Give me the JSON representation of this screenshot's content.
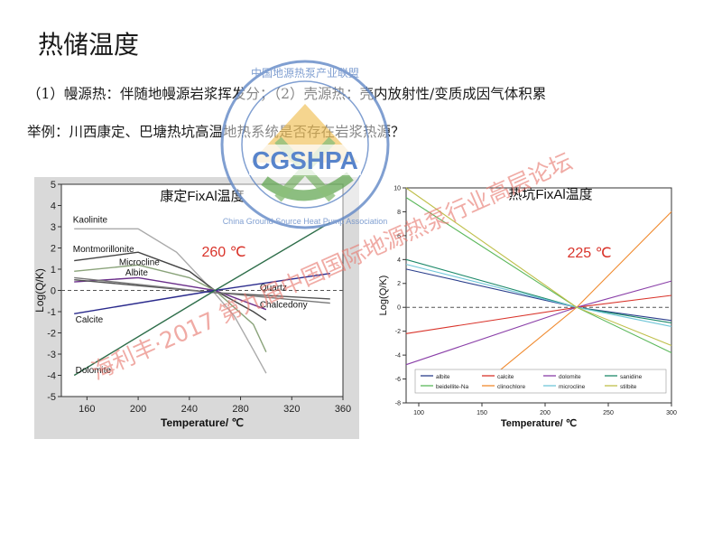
{
  "slide": {
    "title": "热储温度",
    "line1": "（1）幔源热：伴随地幔源岩浆挥发分；（2）壳源热：壳内放射性/变质成因气体积累",
    "line2": "举例：川西康定、巴塘热坑高温地热系统是否存在岩浆热源？"
  },
  "watermark": {
    "logo_text": "CGSHPA",
    "ring_top": "中国地源热泵产业联盟",
    "ring_bottom": "China Ground Source Heat Pump Association",
    "banner": "海利丰·2017 第九届中国国际地源热泵行业高层论坛"
  },
  "colors": {
    "annotation": "#d9342b",
    "ref_line": "#555555"
  },
  "chart_data": [
    {
      "type": "line",
      "title": "康定FixAl温度",
      "annotation": "260 ℃",
      "xlabel": "Temperature/ ℃",
      "ylabel": "Log(Q/K)",
      "xlim": [
        140,
        360
      ],
      "ylim": [
        -5,
        5
      ],
      "xticks": [
        160,
        200,
        240,
        280,
        320,
        360
      ],
      "yticks": [
        -5,
        -4,
        -3,
        -2,
        -1,
        0,
        1,
        2,
        3,
        4,
        5
      ],
      "grid": false,
      "series": [
        {
          "name": "Kaolinite",
          "color": "#aaaaaa",
          "x": [
            150,
            200,
            230,
            255,
            275,
            290,
            300
          ],
          "y": [
            2.9,
            2.9,
            1.8,
            0.2,
            -1.2,
            -2.8,
            -3.9
          ]
        },
        {
          "name": "Montmorillonite",
          "color": "#444444",
          "x": [
            150,
            200,
            240,
            260,
            290,
            300
          ],
          "y": [
            1.4,
            1.8,
            0.9,
            0.0,
            -1.0,
            -1.4
          ]
        },
        {
          "name": "Microcline",
          "color": "#8aa37a",
          "x": [
            150,
            200,
            240,
            260,
            290,
            300
          ],
          "y": [
            0.9,
            1.2,
            0.6,
            0.0,
            -1.6,
            -2.9
          ]
        },
        {
          "name": "Albite",
          "color": "#6a2e8a",
          "x": [
            150,
            200,
            260,
            300
          ],
          "y": [
            0.4,
            0.6,
            0.0,
            -0.9
          ]
        },
        {
          "name": "Quartz",
          "color": "#555555",
          "x": [
            150,
            260,
            350
          ],
          "y": [
            0.5,
            -0.1,
            -0.4
          ]
        },
        {
          "name": "Chalcedony",
          "color": "#777777",
          "x": [
            150,
            260,
            350
          ],
          "y": [
            0.6,
            -0.1,
            -0.6
          ]
        },
        {
          "name": "Calcite",
          "color": "#2a2a8c",
          "x": [
            150,
            260,
            350
          ],
          "y": [
            -1.1,
            0.0,
            0.8
          ]
        },
        {
          "name": "Dolomite",
          "color": "#2e6e4a",
          "x": [
            150,
            260,
            350
          ],
          "y": [
            -4.0,
            0.0,
            3.2
          ]
        }
      ],
      "reference_line": {
        "y": 0,
        "style": "dashed"
      }
    },
    {
      "type": "line",
      "title": "热坑FixAl温度",
      "annotation": "225 ℃",
      "xlabel": "Temperature/ ℃",
      "ylabel": "Log(Q/K)",
      "xlim": [
        90,
        300
      ],
      "ylim": [
        -8,
        10
      ],
      "xticks": [
        100,
        150,
        200,
        250,
        300
      ],
      "yticks": [
        -8,
        -6,
        -4,
        -2,
        0,
        2,
        4,
        6,
        8,
        10
      ],
      "grid": false,
      "legend_position": "bottom",
      "series": [
        {
          "name": "albite",
          "color": "#2b3f8c",
          "x": [
            90,
            225,
            300
          ],
          "y": [
            3.2,
            0.0,
            -1.1
          ]
        },
        {
          "name": "calcite",
          "color": "#d9342b",
          "x": [
            90,
            225,
            300
          ],
          "y": [
            -2.2,
            0.0,
            1.0
          ]
        },
        {
          "name": "dolomite",
          "color": "#8a3fa8",
          "x": [
            90,
            225,
            300
          ],
          "y": [
            -4.8,
            0.0,
            2.2
          ]
        },
        {
          "name": "sanidine",
          "color": "#1e8a6a",
          "x": [
            90,
            225,
            300
          ],
          "y": [
            4.0,
            0.0,
            -1.3
          ]
        },
        {
          "name": "beidellite-Na",
          "color": "#5cb85c",
          "x": [
            90,
            225,
            300
          ],
          "y": [
            9.2,
            0.0,
            -3.8
          ]
        },
        {
          "name": "clinochlore",
          "color": "#f08a2e",
          "x": [
            150,
            225,
            300
          ],
          "y": [
            -6.5,
            0.0,
            8.0
          ]
        },
        {
          "name": "microcline",
          "color": "#6fc6d8",
          "x": [
            90,
            225,
            300
          ],
          "y": [
            3.6,
            0.0,
            -1.6
          ]
        },
        {
          "name": "stilbite",
          "color": "#bfbf4a",
          "x": [
            90,
            225,
            300
          ],
          "y": [
            10.0,
            0.0,
            -3.2
          ]
        }
      ],
      "reference_line": {
        "y": 0,
        "style": "dashed"
      }
    }
  ]
}
